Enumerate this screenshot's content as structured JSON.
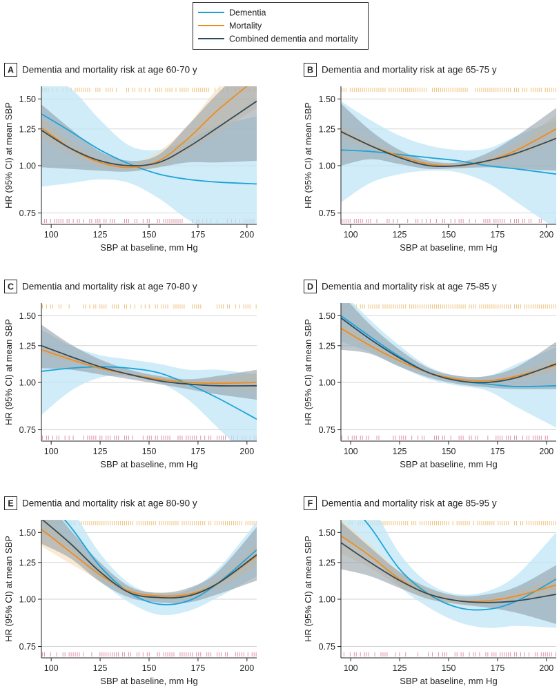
{
  "colors": {
    "dementia": "#1ba3d8",
    "mortality": "#ef8c1e",
    "combined": "#2f4a5a",
    "dementia_band": "#bfe5f5",
    "mortality_band": "#f7dcb8",
    "combined_band": "#8b99a3",
    "rug_top": "#efc07a",
    "rug_bottom": "#e38fa5",
    "grid": "#d6d6d6",
    "panel_tag_bg": "#ffffff"
  },
  "legend": {
    "entries": [
      {
        "key": "dementia",
        "label": "Dementia"
      },
      {
        "key": "mortality",
        "label": "Mortality"
      },
      {
        "key": "combined",
        "label": "Combined dementia and mortality"
      }
    ]
  },
  "axis_labels": {
    "x": "SBP at baseline, mm Hg",
    "y": "HR (95% CI) at mean SBP"
  },
  "chart_data": [
    {
      "type": "line",
      "panel": "A",
      "title": "Dementia and mortality risk at age 60-70 y",
      "xlim": [
        95,
        205
      ],
      "ylim": [
        0.7,
        1.62
      ],
      "y_scale": "log",
      "x_ticks": [
        100,
        125,
        150,
        175,
        200
      ],
      "y_ticks": [
        0.75,
        1.0,
        1.25,
        1.5
      ],
      "y_tick_labels": [
        "0.75",
        "1.00",
        "1.25",
        "1.50"
      ],
      "x": [
        95,
        110,
        125,
        140,
        155,
        170,
        185,
        205
      ],
      "series": [
        {
          "key": "dementia",
          "name": "Dementia",
          "values": [
            1.37,
            1.23,
            1.1,
            1.01,
            0.95,
            0.92,
            0.905,
            0.895
          ],
          "lower": [
            0.88,
            0.9,
            0.92,
            0.9,
            0.82,
            0.72,
            0.66,
            0.6
          ],
          "upper": [
            1.75,
            1.6,
            1.32,
            1.13,
            1.1,
            1.17,
            1.27,
            1.35
          ]
        },
        {
          "key": "mortality",
          "name": "Mortality",
          "values": [
            1.26,
            1.11,
            1.02,
            0.99,
            1.03,
            1.18,
            1.4,
            1.7
          ],
          "lower": [
            1.18,
            1.07,
            0.995,
            0.975,
            0.99,
            1.09,
            1.22,
            1.42
          ],
          "upper": [
            1.34,
            1.16,
            1.045,
            1.01,
            1.09,
            1.28,
            1.6,
            2.0
          ]
        },
        {
          "key": "combined",
          "name": "Combined dementia and mortality",
          "values": [
            1.24,
            1.11,
            1.03,
            1.0,
            1.02,
            1.12,
            1.26,
            1.48
          ],
          "lower": [
            0.99,
            0.98,
            0.97,
            0.965,
            0.99,
            1.02,
            1.02,
            1.03
          ],
          "upper": [
            1.45,
            1.25,
            1.09,
            1.03,
            1.07,
            1.28,
            1.55,
            1.95
          ]
        }
      ]
    },
    {
      "type": "line",
      "panel": "B",
      "title": "Dementia and mortality risk at age 65-75 y",
      "xlim": [
        95,
        205
      ],
      "ylim": [
        0.7,
        1.62
      ],
      "y_scale": "log",
      "x_ticks": [
        100,
        125,
        150,
        175,
        200
      ],
      "y_ticks": [
        0.75,
        1.0,
        1.25,
        1.5
      ],
      "y_tick_labels": [
        "0.75",
        "1.00",
        "1.25",
        "1.50"
      ],
      "x": [
        95,
        110,
        125,
        140,
        155,
        170,
        185,
        205
      ],
      "series": [
        {
          "key": "dementia",
          "name": "Dementia",
          "values": [
            1.1,
            1.09,
            1.07,
            1.05,
            1.03,
            1.0,
            0.98,
            0.95
          ],
          "lower": [
            0.8,
            0.9,
            0.95,
            0.97,
            0.96,
            0.9,
            0.8,
            0.68
          ],
          "upper": [
            1.48,
            1.32,
            1.2,
            1.13,
            1.1,
            1.11,
            1.2,
            1.32
          ]
        },
        {
          "key": "mortality",
          "name": "Mortality",
          "values": [
            1.23,
            1.13,
            1.06,
            1.01,
            1.0,
            1.03,
            1.1,
            1.25
          ],
          "lower": [
            1.19,
            1.11,
            1.045,
            1.0,
            0.985,
            1.01,
            1.06,
            1.16
          ],
          "upper": [
            1.28,
            1.16,
            1.075,
            1.02,
            1.015,
            1.05,
            1.15,
            1.36
          ]
        },
        {
          "key": "combined",
          "name": "Combined dementia and mortality",
          "values": [
            1.23,
            1.13,
            1.05,
            1.0,
            1.0,
            1.03,
            1.08,
            1.18
          ],
          "lower": [
            1.0,
            1.04,
            1.01,
            0.98,
            0.985,
            0.99,
            0.98,
            0.97
          ],
          "upper": [
            1.46,
            1.24,
            1.1,
            1.03,
            1.02,
            1.08,
            1.2,
            1.42
          ]
        }
      ]
    },
    {
      "type": "line",
      "panel": "C",
      "title": "Dementia and mortality risk at age 70-80 y",
      "xlim": [
        95,
        205
      ],
      "ylim": [
        0.7,
        1.62
      ],
      "y_scale": "log",
      "x_ticks": [
        100,
        125,
        150,
        175,
        200
      ],
      "y_ticks": [
        0.75,
        1.0,
        1.25,
        1.5
      ],
      "y_tick_labels": [
        "0.75",
        "1.00",
        "1.25",
        "1.50"
      ],
      "x": [
        95,
        110,
        125,
        140,
        155,
        170,
        185,
        205
      ],
      "series": [
        {
          "key": "dementia",
          "name": "Dementia",
          "values": [
            1.07,
            1.09,
            1.1,
            1.09,
            1.06,
            0.99,
            0.91,
            0.8
          ],
          "lower": [
            0.82,
            0.95,
            1.03,
            1.04,
            1.0,
            0.9,
            0.76,
            0.6
          ],
          "upper": [
            1.38,
            1.25,
            1.18,
            1.15,
            1.12,
            1.08,
            1.08,
            1.05
          ]
        },
        {
          "key": "mortality",
          "name": "Mortality",
          "values": [
            1.22,
            1.15,
            1.09,
            1.05,
            1.02,
            1.0,
            0.995,
            1.0
          ],
          "lower": [
            1.19,
            1.13,
            1.08,
            1.04,
            1.01,
            0.985,
            0.97,
            0.95
          ],
          "upper": [
            1.25,
            1.17,
            1.1,
            1.06,
            1.03,
            1.015,
            1.025,
            1.06
          ]
        },
        {
          "key": "combined",
          "name": "Combined dementia and mortality",
          "values": [
            1.25,
            1.17,
            1.1,
            1.05,
            1.01,
            0.99,
            0.98,
            0.98
          ],
          "lower": [
            1.09,
            1.08,
            1.05,
            1.02,
            0.99,
            0.96,
            0.93,
            0.9
          ],
          "upper": [
            1.42,
            1.26,
            1.15,
            1.08,
            1.04,
            1.02,
            1.04,
            1.08
          ]
        }
      ]
    },
    {
      "type": "line",
      "panel": "D",
      "title": "Dementia and mortality risk at age 75-85 y",
      "xlim": [
        95,
        205
      ],
      "ylim": [
        0.7,
        1.62
      ],
      "y_scale": "log",
      "x_ticks": [
        100,
        125,
        150,
        175,
        200
      ],
      "y_ticks": [
        0.75,
        1.0,
        1.25,
        1.5
      ],
      "y_tick_labels": [
        "0.75",
        "1.00",
        "1.25",
        "1.50"
      ],
      "x": [
        95,
        110,
        125,
        140,
        155,
        170,
        185,
        205
      ],
      "series": [
        {
          "key": "dementia",
          "name": "Dementia",
          "values": [
            1.5,
            1.32,
            1.17,
            1.06,
            1.01,
            0.99,
            0.975,
            0.98
          ],
          "lower": [
            1.28,
            1.2,
            1.1,
            1.02,
            0.98,
            0.95,
            0.86,
            0.76
          ],
          "upper": [
            1.75,
            1.46,
            1.25,
            1.1,
            1.04,
            1.04,
            1.12,
            1.24
          ]
        },
        {
          "key": "mortality",
          "name": "Mortality",
          "values": [
            1.39,
            1.25,
            1.14,
            1.06,
            1.02,
            1.01,
            1.04,
            1.11
          ],
          "lower": [
            1.34,
            1.22,
            1.12,
            1.05,
            1.01,
            1.0,
            1.02,
            1.07
          ],
          "upper": [
            1.45,
            1.28,
            1.16,
            1.07,
            1.03,
            1.02,
            1.06,
            1.16
          ]
        },
        {
          "key": "combined",
          "name": "Combined dementia and mortality",
          "values": [
            1.48,
            1.3,
            1.16,
            1.06,
            1.01,
            1.0,
            1.03,
            1.12
          ],
          "lower": [
            1.22,
            1.19,
            1.1,
            1.03,
            0.99,
            0.97,
            0.96,
            0.96
          ],
          "upper": [
            1.72,
            1.42,
            1.22,
            1.09,
            1.04,
            1.04,
            1.1,
            1.28
          ]
        }
      ]
    },
    {
      "type": "line",
      "panel": "E",
      "title": "Dementia and mortality risk at age 80-90 y",
      "xlim": [
        95,
        205
      ],
      "ylim": [
        0.7,
        1.62
      ],
      "y_scale": "log",
      "x_ticks": [
        100,
        125,
        150,
        175,
        200
      ],
      "y_ticks": [
        0.75,
        1.0,
        1.25,
        1.5
      ],
      "y_tick_labels": [
        "0.75",
        "1.00",
        "1.25",
        "1.50"
      ],
      "x": [
        95,
        110,
        125,
        140,
        155,
        170,
        185,
        205
      ],
      "series": [
        {
          "key": "dementia",
          "name": "Dementia",
          "values": [
            1.9,
            1.55,
            1.22,
            1.04,
            0.97,
            0.99,
            1.1,
            1.35
          ],
          "lower": [
            1.5,
            1.35,
            1.12,
            0.98,
            0.91,
            0.93,
            1.01,
            1.15
          ],
          "upper": [
            2.3,
            1.75,
            1.32,
            1.1,
            1.03,
            1.06,
            1.2,
            1.6
          ]
        },
        {
          "key": "mortality",
          "name": "Mortality",
          "values": [
            1.53,
            1.33,
            1.16,
            1.05,
            1.02,
            1.03,
            1.1,
            1.3
          ],
          "lower": [
            1.38,
            1.24,
            1.12,
            1.03,
            1.0,
            1.01,
            1.07,
            1.22
          ],
          "upper": [
            1.68,
            1.42,
            1.2,
            1.07,
            1.04,
            1.05,
            1.14,
            1.4
          ]
        },
        {
          "key": "combined",
          "name": "Combined dementia and mortality",
          "values": [
            1.63,
            1.4,
            1.18,
            1.04,
            1.01,
            1.02,
            1.1,
            1.31
          ],
          "lower": [
            1.4,
            1.28,
            1.11,
            1.01,
            0.98,
            0.98,
            1.03,
            1.12
          ],
          "upper": [
            1.9,
            1.52,
            1.25,
            1.08,
            1.04,
            1.07,
            1.18,
            1.55
          ]
        }
      ]
    },
    {
      "type": "line",
      "panel": "F",
      "title": "Dementia and mortality risk at age 85-95 y",
      "xlim": [
        95,
        205
      ],
      "ylim": [
        0.7,
        1.62
      ],
      "y_scale": "log",
      "x_ticks": [
        100,
        125,
        150,
        175,
        200
      ],
      "y_ticks": [
        0.75,
        1.0,
        1.25,
        1.5
      ],
      "y_tick_labels": [
        "0.75",
        "1.00",
        "1.25",
        "1.50"
      ],
      "x": [
        95,
        110,
        125,
        140,
        155,
        170,
        185,
        205
      ],
      "series": [
        {
          "key": "dementia",
          "name": "Dementia",
          "values": [
            1.9,
            1.55,
            1.2,
            1.03,
            0.95,
            0.94,
            0.99,
            1.13
          ],
          "lower": [
            1.45,
            1.32,
            1.08,
            0.95,
            0.87,
            0.84,
            0.85,
            0.84
          ],
          "upper": [
            2.3,
            1.8,
            1.32,
            1.1,
            1.03,
            1.05,
            1.16,
            1.5
          ]
        },
        {
          "key": "mortality",
          "name": "Mortality",
          "values": [
            1.47,
            1.3,
            1.13,
            1.03,
            0.99,
            0.99,
            1.02,
            1.09
          ],
          "lower": [
            1.32,
            1.21,
            1.08,
            1.0,
            0.97,
            0.97,
            0.99,
            1.03
          ],
          "upper": [
            1.62,
            1.39,
            1.18,
            1.06,
            1.01,
            1.01,
            1.05,
            1.15
          ]
        },
        {
          "key": "combined",
          "name": "Combined dementia and mortality",
          "values": [
            1.41,
            1.25,
            1.12,
            1.03,
            0.99,
            0.98,
            0.99,
            1.03
          ],
          "lower": [
            1.2,
            1.15,
            1.07,
            1.0,
            0.97,
            0.95,
            0.92,
            0.86
          ],
          "upper": [
            1.6,
            1.37,
            1.18,
            1.07,
            1.02,
            1.03,
            1.08,
            1.23
          ]
        }
      ]
    }
  ]
}
